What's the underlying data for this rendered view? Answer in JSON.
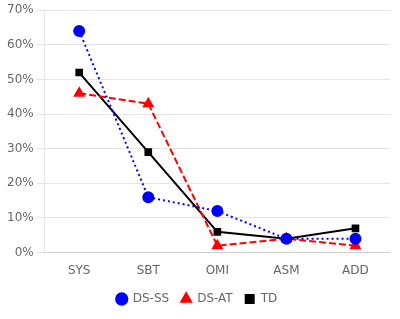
{
  "chart_data": {
    "type": "line",
    "categories": [
      "SYS",
      "SBT",
      "OMI",
      "ASM",
      "ADD"
    ],
    "series": [
      {
        "name": "DS-SS",
        "color": "#0000ff",
        "values": [
          64,
          16,
          12,
          4,
          4
        ],
        "marker": "circle",
        "line_style": "dotted"
      },
      {
        "name": "DS-AT",
        "color": "#ff0000",
        "values": [
          46,
          43,
          2,
          4,
          2
        ],
        "marker": "triangle",
        "line_style": "dashed"
      },
      {
        "name": "TD",
        "color": "#000000",
        "values": [
          52,
          29,
          6,
          4,
          7
        ],
        "marker": "square",
        "line_style": "solid"
      }
    ],
    "ylim": [
      0,
      70
    ],
    "yticks": [
      {
        "value": 0,
        "label": "0%"
      },
      {
        "value": 10,
        "label": "10%"
      },
      {
        "value": 20,
        "label": "20%"
      },
      {
        "value": 30,
        "label": "30%"
      },
      {
        "value": 40,
        "label": "40%"
      },
      {
        "value": 50,
        "label": "50%"
      },
      {
        "value": 60,
        "label": "60%"
      },
      {
        "value": 70,
        "label": "70%"
      }
    ],
    "grid": true,
    "legend": "bottom"
  }
}
